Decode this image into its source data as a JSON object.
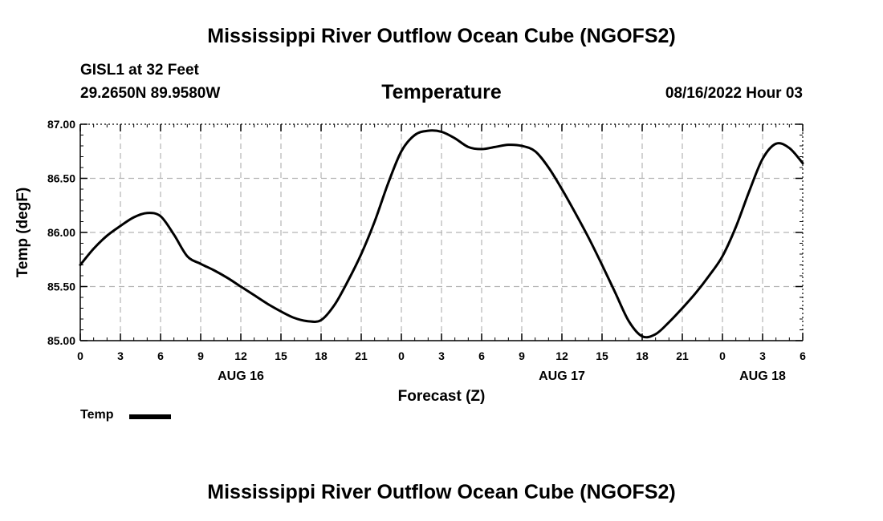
{
  "header": {
    "title": "Mississippi River Outflow Ocean Cube (NGOFS2)",
    "station": "GISL1 at 32 Feet",
    "coords": "29.2650N  89.9580W",
    "date": "08/16/2022 Hour 03",
    "footer_title": "Mississippi River Outflow Ocean Cube (NGOFS2)"
  },
  "legend": {
    "label": "Temp"
  },
  "chart_data": {
    "type": "line",
    "title": "Temperature",
    "xlabel": "Forecast (Z)",
    "ylabel": "Temp (degF)",
    "x_unit": "hours since 2022-08-16 00Z",
    "xlim": [
      0,
      54
    ],
    "ylim": [
      85.0,
      87.0
    ],
    "grid": true,
    "legend_position": "bottom-left",
    "yticks": [
      85.0,
      85.5,
      86.0,
      86.5,
      87.0
    ],
    "ytick_labels": [
      "85.00",
      "85.50",
      "86.00",
      "86.50",
      "87.00"
    ],
    "xticks": [
      0,
      3,
      6,
      9,
      12,
      15,
      18,
      21,
      24,
      27,
      30,
      33,
      36,
      39,
      42,
      45,
      48,
      51,
      54
    ],
    "xtick_labels": [
      "0",
      "3",
      "6",
      "9",
      "12",
      "15",
      "18",
      "21",
      "0",
      "3",
      "6",
      "9",
      "12",
      "15",
      "18",
      "21",
      "0",
      "3",
      "6"
    ],
    "date_labels": [
      {
        "x": 12,
        "label": "AUG 16"
      },
      {
        "x": 36,
        "label": "AUG 17"
      },
      {
        "x": 51,
        "label": "AUG 18"
      }
    ],
    "series": [
      {
        "name": "Temp",
        "color": "#000000",
        "x": [
          0,
          1,
          2,
          3,
          4,
          5,
          6,
          7,
          8,
          9,
          10,
          11,
          12,
          13,
          14,
          15,
          16,
          17,
          18,
          19,
          20,
          21,
          22,
          23,
          24,
          25,
          26,
          27,
          28,
          29,
          30,
          31,
          32,
          33,
          34,
          35,
          36,
          37,
          38,
          39,
          40,
          41,
          42,
          43,
          44,
          45,
          46,
          47,
          48,
          49,
          50,
          51,
          52,
          53,
          54
        ],
        "values": [
          85.7,
          85.85,
          85.97,
          86.06,
          86.14,
          86.18,
          86.15,
          85.98,
          85.78,
          85.71,
          85.65,
          85.58,
          85.5,
          85.42,
          85.34,
          85.27,
          85.21,
          85.18,
          85.19,
          85.33,
          85.55,
          85.8,
          86.1,
          86.45,
          86.75,
          86.9,
          86.94,
          86.93,
          86.87,
          86.79,
          86.77,
          86.79,
          86.81,
          86.8,
          86.75,
          86.6,
          86.4,
          86.18,
          85.95,
          85.7,
          85.44,
          85.18,
          85.04,
          85.06,
          85.17,
          85.3,
          85.44,
          85.6,
          85.78,
          86.05,
          86.38,
          86.68,
          86.82,
          86.78,
          86.64
        ]
      }
    ]
  }
}
